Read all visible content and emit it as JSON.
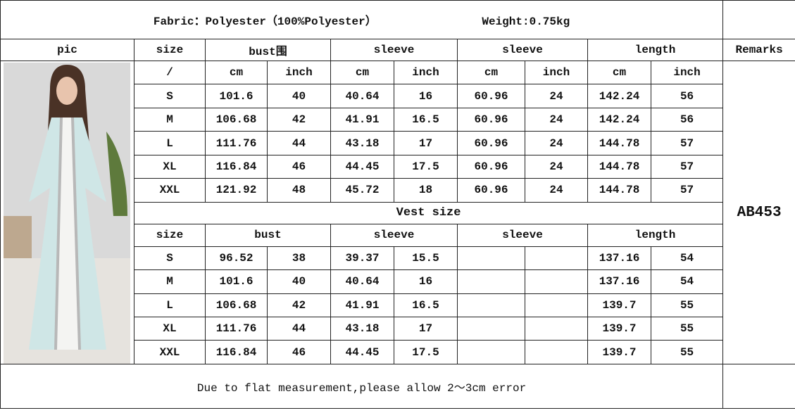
{
  "title": {
    "fabric": "Fabric：Polyester（100%Polyester）",
    "weight": "Weight:0.75kg"
  },
  "header": {
    "pic": "pic",
    "size": "size",
    "bust": "bust围",
    "sleeve1": "sleeve",
    "sleeve2": "sleeve",
    "length": "length",
    "remarks": "Remarks"
  },
  "units": [
    "/",
    "cm",
    "inch",
    "cm",
    "inch",
    "cm",
    "inch",
    "cm",
    "inch"
  ],
  "main_rows": [
    [
      "S",
      "101.6",
      "40",
      "40.64",
      "16",
      "60.96",
      "24",
      "142.24",
      "56"
    ],
    [
      "M",
      "106.68",
      "42",
      "41.91",
      "16.5",
      "60.96",
      "24",
      "142.24",
      "56"
    ],
    [
      "L",
      "111.76",
      "44",
      "43.18",
      "17",
      "60.96",
      "24",
      "144.78",
      "57"
    ],
    [
      "XL",
      "116.84",
      "46",
      "44.45",
      "17.5",
      "60.96",
      "24",
      "144.78",
      "57"
    ],
    [
      "XXL",
      "121.92",
      "48",
      "45.72",
      "18",
      "60.96",
      "24",
      "144.78",
      "57"
    ]
  ],
  "vest": {
    "title": "Vest size",
    "header": {
      "size": "size",
      "bust": "bust",
      "sleeve1": "sleeve",
      "sleeve2": "sleeve",
      "length": "length"
    },
    "rows": [
      [
        "S",
        "96.52",
        "38",
        "39.37",
        "15.5",
        "",
        "",
        "137.16",
        "54"
      ],
      [
        "M",
        "101.6",
        "40",
        "40.64",
        "16",
        "",
        "",
        "137.16",
        "54"
      ],
      [
        "L",
        "106.68",
        "42",
        "41.91",
        "16.5",
        "",
        "",
        "139.7",
        "55"
      ],
      [
        "XL",
        "111.76",
        "44",
        "43.18",
        "17",
        "",
        "",
        "139.7",
        "55"
      ],
      [
        "XXL",
        "116.84",
        "46",
        "44.45",
        "17.5",
        "",
        "",
        "139.7",
        "55"
      ]
    ]
  },
  "remark": "AB453",
  "footer": "Due to flat measurement,please allow 2～3cm error",
  "colors": {
    "dress": "#cfe6e6",
    "background": "#d9d9d9"
  }
}
